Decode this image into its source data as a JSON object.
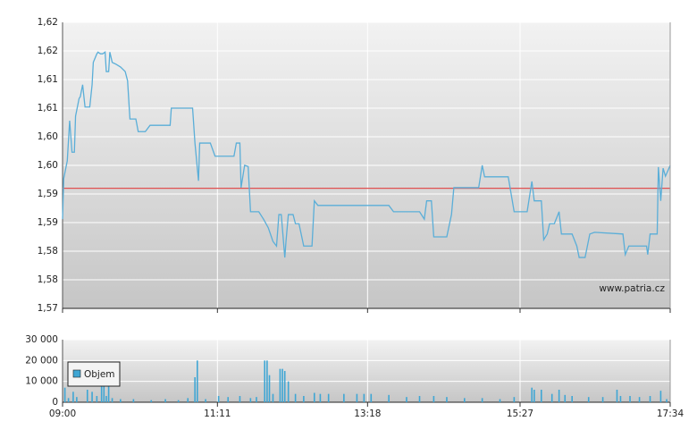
{
  "chart_data": [
    {
      "type": "line",
      "color": "#5aaed8",
      "x": [
        540,
        541,
        544,
        546,
        548,
        550,
        551,
        554,
        555,
        557,
        559,
        563,
        565,
        566,
        569,
        570,
        572,
        574,
        576,
        577,
        579,
        580,
        582,
        585,
        589,
        593,
        595,
        597,
        602,
        604,
        610,
        614,
        631,
        632,
        650,
        652,
        655,
        656,
        665,
        669,
        685,
        687,
        690,
        691,
        694,
        697,
        699,
        706,
        710,
        714,
        718,
        721,
        723,
        725,
        728,
        729,
        731,
        735,
        737,
        740,
        744,
        751,
        753,
        756,
        816,
        820,
        842,
        846,
        848,
        852,
        854,
        865,
        869,
        871,
        892,
        895,
        897,
        917,
        922,
        933,
        937,
        939,
        945,
        947,
        950,
        952,
        956,
        960,
        962,
        971,
        975,
        977,
        982,
        986,
        990,
        1014,
        1016,
        1019,
        1034,
        1035,
        1037,
        1043,
        1044,
        1046,
        1048,
        1050,
        1054
      ],
      "values": [
        1.5856,
        1.5927,
        1.5958,
        1.6028,
        1.5973,
        1.5973,
        1.6036,
        1.6067,
        1.607,
        1.6091,
        1.6052,
        1.6052,
        1.6091,
        1.613,
        1.6145,
        1.6148,
        1.6145,
        1.6145,
        1.6148,
        1.6114,
        1.6114,
        1.6148,
        1.613,
        1.6127,
        1.6122,
        1.6114,
        1.6098,
        1.6031,
        1.6031,
        1.6009,
        1.6009,
        1.602,
        1.602,
        1.605,
        1.605,
        1.5989,
        1.5923,
        1.5989,
        1.5989,
        1.5966,
        1.5966,
        1.5989,
        1.5989,
        1.5911,
        1.595,
        1.5948,
        1.5869,
        1.5869,
        1.5856,
        1.5841,
        1.5817,
        1.5809,
        1.5864,
        1.5864,
        1.5789,
        1.5817,
        1.5864,
        1.5864,
        1.5848,
        1.5848,
        1.5809,
        1.5809,
        1.5888,
        1.588,
        1.588,
        1.5869,
        1.5869,
        1.5856,
        1.5888,
        1.5888,
        1.5825,
        1.5825,
        1.5864,
        1.5911,
        1.5911,
        1.595,
        1.593,
        1.593,
        1.5869,
        1.5869,
        1.5922,
        1.5888,
        1.5888,
        1.582,
        1.583,
        1.5848,
        1.5848,
        1.5869,
        1.583,
        1.583,
        1.5809,
        1.5789,
        1.5789,
        1.583,
        1.5833,
        1.583,
        1.5794,
        1.5809,
        1.5809,
        1.5794,
        1.583,
        1.583,
        1.5947,
        1.5888,
        1.5945,
        1.5931,
        1.595
      ],
      "reference_line": 1.591,
      "reference_color": "#e05050",
      "xlim": [
        540,
        1054
      ],
      "ylim": [
        1.57,
        1.62
      ],
      "yticks": [
        {
          "value": 1.57,
          "label": "1,57"
        },
        {
          "value": 1.575,
          "label": "1,58"
        },
        {
          "value": 1.58,
          "label": "1,58"
        },
        {
          "value": 1.585,
          "label": "1,59"
        },
        {
          "value": 1.59,
          "label": "1,59"
        },
        {
          "value": 1.595,
          "label": "1,60"
        },
        {
          "value": 1.6,
          "label": "1,60"
        },
        {
          "value": 1.605,
          "label": "1,61"
        },
        {
          "value": 1.61,
          "label": "1,61"
        },
        {
          "value": 1.615,
          "label": "1,62"
        },
        {
          "value": 1.62,
          "label": "1,62"
        }
      ],
      "annotation": "www.patria.cz",
      "grid": true
    },
    {
      "type": "bar",
      "x": [
        542,
        545,
        549,
        552,
        561,
        565,
        569,
        573,
        575,
        577,
        579,
        582,
        589,
        600,
        615,
        627,
        638,
        646,
        652,
        654,
        661,
        672,
        680,
        690,
        699,
        704,
        711,
        713,
        715,
        718,
        724,
        726,
        728,
        731,
        737,
        744,
        753,
        758,
        765,
        778,
        789,
        795,
        801,
        816,
        831,
        842,
        854,
        865,
        880,
        895,
        910,
        922,
        937,
        939,
        945,
        954,
        960,
        965,
        971,
        985,
        997,
        1009,
        1012,
        1020,
        1028,
        1037,
        1046,
        1051
      ],
      "series": [
        {
          "name": "Objem",
          "color": "#3fa6d4",
          "values": [
            7000,
            2000,
            5000,
            2500,
            6000,
            5000,
            3000,
            10000,
            10000,
            3000,
            8000,
            2000,
            1500,
            1500,
            1000,
            1500,
            1000,
            2000,
            12000,
            20000,
            1500,
            3000,
            2500,
            3000,
            2000,
            2500,
            20000,
            20000,
            13000,
            4000,
            16000,
            16000,
            15000,
            10000,
            4000,
            3000,
            4500,
            4000,
            4000,
            4000,
            4000,
            4000,
            4000,
            3500,
            2500,
            3000,
            3000,
            2500,
            2000,
            2000,
            1500,
            2500,
            7000,
            6000,
            6000,
            4000,
            6000,
            3500,
            3000,
            2500,
            2500,
            6000,
            3000,
            3000,
            2500,
            3000,
            5500,
            1500
          ]
        }
      ],
      "xlim": [
        540,
        1054
      ],
      "xticks": [
        {
          "value": 540,
          "label": "09:00"
        },
        {
          "value": 671,
          "label": "11:11"
        },
        {
          "value": 798,
          "label": "13:18"
        },
        {
          "value": 927,
          "label": "15:27"
        },
        {
          "value": 1054,
          "label": "17:34"
        }
      ],
      "ylim": [
        0,
        30000
      ],
      "yticks": [
        0,
        {
          "value": 10000,
          "label": "10 000"
        },
        {
          "value": 20000,
          "label": "20 000"
        },
        {
          "value": 30000,
          "label": "30 000"
        }
      ],
      "grid": true
    }
  ]
}
